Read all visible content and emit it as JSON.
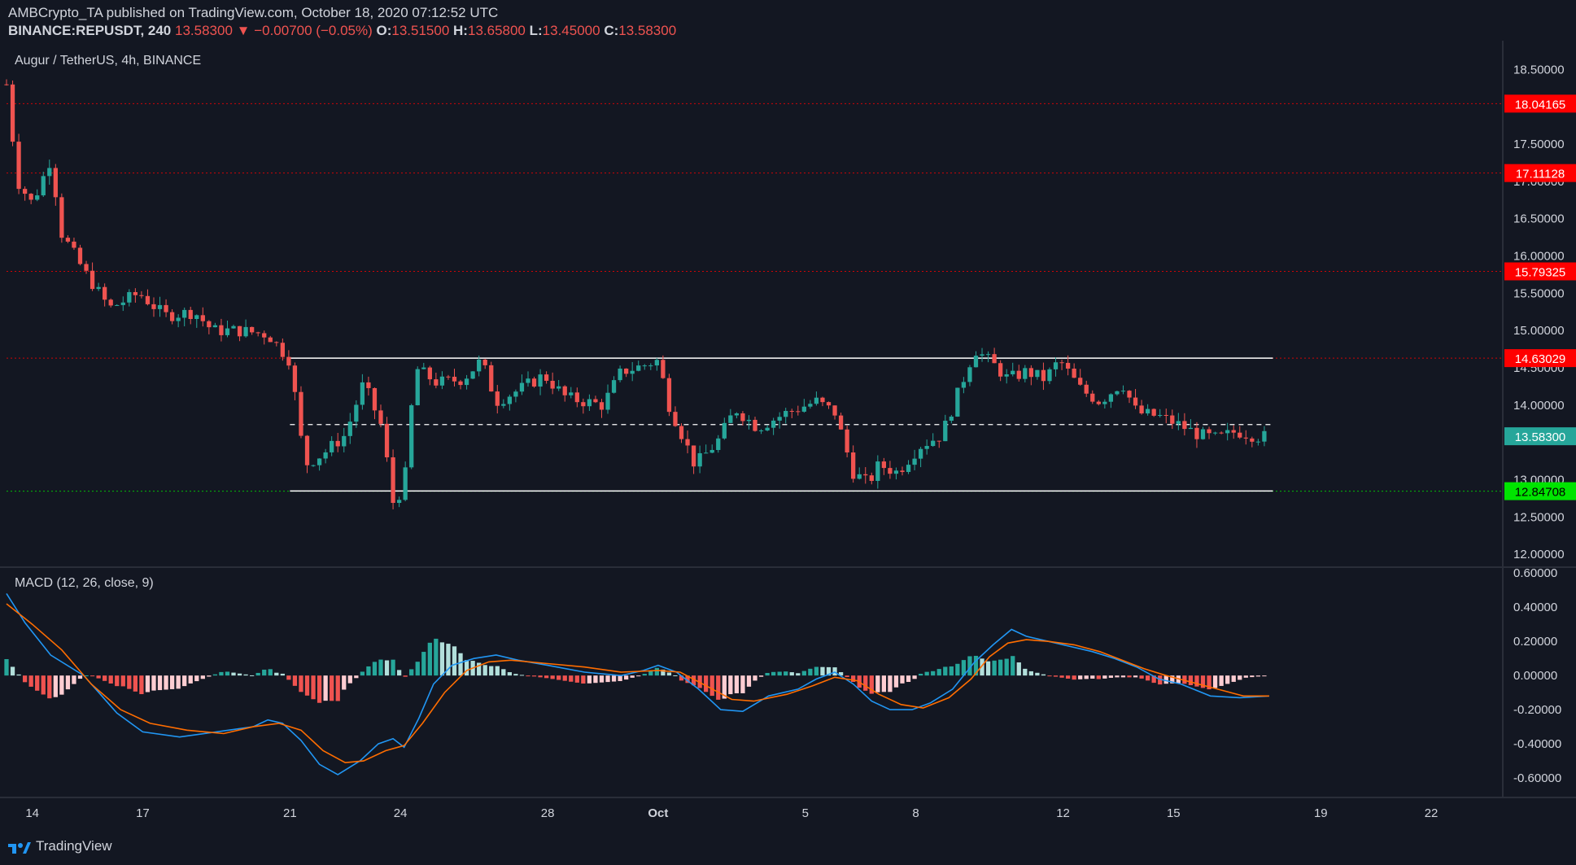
{
  "header": {
    "publisher_line": "AMBCrypto_TA published on TradingView.com, October 18, 2020 07:12:52 UTC",
    "symbol": "BINANCE:REPUSDT, 240",
    "last_price": "13.58300",
    "change_arrow": "▼",
    "change": "−0.00700 (−0.05%)",
    "o_label": "O:",
    "o_value": "13.51500",
    "h_label": "H:",
    "h_value": "13.65800",
    "l_label": "L:",
    "l_value": "13.45000",
    "c_label": "C:",
    "c_value": "13.58300"
  },
  "main_pane": {
    "title": "Augur / TetherUS, 4h, BINANCE"
  },
  "macd_pane": {
    "title": "MACD (12, 26, close, 9)"
  },
  "footer": {
    "brand": "TradingView",
    "brand_icon": "tradingview-logo-icon"
  },
  "colors": {
    "background": "#131722",
    "up": "#26a69a",
    "down": "#ef5350",
    "hist_up_strong": "#26a69a",
    "hist_up_weak": "#b2dfdb",
    "hist_down_strong": "#ef5350",
    "hist_down_weak": "#ffcdd2",
    "macd_line": "#2196f3",
    "signal_line": "#ff6d00",
    "resistance_line": "#ffffff",
    "support_line": "#ffffff",
    "level_red": "#ff0000",
    "level_green": "#00e400",
    "price_tag": "#26a69a"
  },
  "chart_data": [
    {
      "type": "candlestick",
      "title": "Augur / TetherUS, 4h, BINANCE",
      "x_ticks": [
        "14",
        "17",
        "21",
        "24",
        "28",
        "Oct",
        "5",
        "8",
        "12",
        "15",
        "19",
        "22"
      ],
      "x_tick_days": [
        14,
        17,
        21,
        24,
        28,
        31,
        35,
        38,
        42,
        45,
        49,
        52
      ],
      "x_range_days": [
        13.3,
        53.9
      ],
      "y_ticks": [
        "18.50000",
        "17.50000",
        "17.00000",
        "16.50000",
        "16.00000",
        "15.50000",
        "15.00000",
        "14.50000",
        "14.00000",
        "13.00000",
        "12.50000",
        "12.00000"
      ],
      "y_range": [
        11.85,
        18.82
      ],
      "price_labels": [
        {
          "text": "18.04165",
          "value": 18.04165,
          "kind": "resistance"
        },
        {
          "text": "17.11128",
          "value": 17.11128,
          "kind": "resistance"
        },
        {
          "text": "15.79325",
          "value": 15.79325,
          "kind": "resistance"
        },
        {
          "text": "14.63029",
          "value": 14.63029,
          "kind": "resistance"
        },
        {
          "text": "13.58300",
          "value": 13.583,
          "kind": "last"
        },
        {
          "text": "12.84708",
          "value": 12.84708,
          "kind": "support"
        }
      ],
      "channel": {
        "start_day": 21.0,
        "end_day": 47.7,
        "upper": 14.63,
        "mid": 13.74,
        "lower": 12.85
      },
      "last_day": 47.6,
      "anchors": [
        {
          "day": 13.3,
          "price": 18.3
        },
        {
          "day": 13.6,
          "price": 17.0
        },
        {
          "day": 14.0,
          "price": 16.7
        },
        {
          "day": 14.5,
          "price": 17.3
        },
        {
          "day": 14.8,
          "price": 16.3
        },
        {
          "day": 15.4,
          "price": 15.8
        },
        {
          "day": 16.1,
          "price": 15.3
        },
        {
          "day": 16.9,
          "price": 15.5
        },
        {
          "day": 17.6,
          "price": 15.2
        },
        {
          "day": 18.4,
          "price": 15.25
        },
        {
          "day": 18.9,
          "price": 15.0
        },
        {
          "day": 19.6,
          "price": 15.0
        },
        {
          "day": 20.4,
          "price": 14.95
        },
        {
          "day": 21.0,
          "price": 14.6
        },
        {
          "day": 21.4,
          "price": 13.2
        },
        {
          "day": 21.9,
          "price": 13.35
        },
        {
          "day": 22.5,
          "price": 13.6
        },
        {
          "day": 23.0,
          "price": 14.3
        },
        {
          "day": 23.5,
          "price": 13.7
        },
        {
          "day": 23.8,
          "price": 12.7
        },
        {
          "day": 24.1,
          "price": 12.9
        },
        {
          "day": 24.4,
          "price": 14.5
        },
        {
          "day": 25.0,
          "price": 14.3
        },
        {
          "day": 25.7,
          "price": 14.35
        },
        {
          "day": 26.2,
          "price": 14.6
        },
        {
          "day": 26.6,
          "price": 14.05
        },
        {
          "day": 27.2,
          "price": 14.2
        },
        {
          "day": 27.9,
          "price": 14.4
        },
        {
          "day": 28.5,
          "price": 14.1
        },
        {
          "day": 29.5,
          "price": 14.0
        },
        {
          "day": 30.0,
          "price": 14.45
        },
        {
          "day": 30.4,
          "price": 14.5
        },
        {
          "day": 31.0,
          "price": 14.6
        },
        {
          "day": 31.3,
          "price": 14.0
        },
        {
          "day": 32.0,
          "price": 13.2
        },
        {
          "day": 32.6,
          "price": 13.5
        },
        {
          "day": 33.1,
          "price": 13.95
        },
        {
          "day": 33.7,
          "price": 13.7
        },
        {
          "day": 34.5,
          "price": 13.9
        },
        {
          "day": 35.3,
          "price": 14.05
        },
        {
          "day": 35.8,
          "price": 13.9
        },
        {
          "day": 36.3,
          "price": 13.1
        },
        {
          "day": 36.7,
          "price": 12.95
        },
        {
          "day": 37.0,
          "price": 13.2
        },
        {
          "day": 37.5,
          "price": 13.1
        },
        {
          "day": 38.1,
          "price": 13.45
        },
        {
          "day": 38.7,
          "price": 13.6
        },
        {
          "day": 39.1,
          "price": 14.1
        },
        {
          "day": 39.6,
          "price": 14.75
        },
        {
          "day": 40.1,
          "price": 14.55
        },
        {
          "day": 40.5,
          "price": 14.35
        },
        {
          "day": 41.0,
          "price": 14.45
        },
        {
          "day": 41.5,
          "price": 14.35
        },
        {
          "day": 41.9,
          "price": 14.6
        },
        {
          "day": 42.5,
          "price": 14.2
        },
        {
          "day": 43.0,
          "price": 14.05
        },
        {
          "day": 43.6,
          "price": 14.3
        },
        {
          "day": 44.0,
          "price": 13.9
        },
        {
          "day": 44.6,
          "price": 13.85
        },
        {
          "day": 45.1,
          "price": 13.75
        },
        {
          "day": 45.7,
          "price": 13.6
        },
        {
          "day": 46.2,
          "price": 13.55
        },
        {
          "day": 46.7,
          "price": 13.65
        },
        {
          "day": 47.3,
          "price": 13.58
        },
        {
          "day": 47.6,
          "price": 13.58
        }
      ]
    },
    {
      "type": "line",
      "title": "MACD (12, 26, close, 9)",
      "y_ticks": [
        "0.60000",
        "0.40000",
        "0.20000",
        "0.00000",
        "-0.20000",
        "-0.40000",
        "-0.60000"
      ],
      "y_range": [
        -0.69,
        0.62
      ],
      "series": [
        {
          "name": "MACD",
          "color": "#2196f3",
          "points": [
            [
              13.3,
              0.48
            ],
            [
              13.8,
              0.31
            ],
            [
              14.5,
              0.12
            ],
            [
              15.4,
              0.0
            ],
            [
              16.3,
              -0.22
            ],
            [
              17.0,
              -0.33
            ],
            [
              18.0,
              -0.36
            ],
            [
              19.0,
              -0.33
            ],
            [
              20.0,
              -0.3
            ],
            [
              20.4,
              -0.26
            ],
            [
              20.8,
              -0.28
            ],
            [
              21.3,
              -0.38
            ],
            [
              21.8,
              -0.52
            ],
            [
              22.3,
              -0.58
            ],
            [
              22.9,
              -0.5
            ],
            [
              23.4,
              -0.4
            ],
            [
              23.8,
              -0.37
            ],
            [
              24.1,
              -0.42
            ],
            [
              24.5,
              -0.25
            ],
            [
              24.9,
              -0.05
            ],
            [
              25.4,
              0.06
            ],
            [
              26.0,
              0.1
            ],
            [
              26.6,
              0.12
            ],
            [
              27.2,
              0.09
            ],
            [
              28.0,
              0.06
            ],
            [
              29.0,
              0.02
            ],
            [
              30.0,
              0.0
            ],
            [
              30.6,
              0.03
            ],
            [
              31.0,
              0.06
            ],
            [
              31.5,
              0.02
            ],
            [
              32.1,
              -0.08
            ],
            [
              32.7,
              -0.2
            ],
            [
              33.3,
              -0.21
            ],
            [
              34.0,
              -0.12
            ],
            [
              34.8,
              -0.08
            ],
            [
              35.3,
              -0.02
            ],
            [
              35.8,
              0.02
            ],
            [
              36.3,
              -0.05
            ],
            [
              36.8,
              -0.15
            ],
            [
              37.3,
              -0.2
            ],
            [
              37.9,
              -0.2
            ],
            [
              38.4,
              -0.16
            ],
            [
              39.0,
              -0.08
            ],
            [
              39.6,
              0.08
            ],
            [
              40.1,
              0.18
            ],
            [
              40.6,
              0.27
            ],
            [
              41.0,
              0.23
            ],
            [
              41.6,
              0.2
            ],
            [
              42.2,
              0.17
            ],
            [
              42.8,
              0.14
            ],
            [
              43.4,
              0.1
            ],
            [
              44.0,
              0.05
            ],
            [
              44.6,
              -0.02
            ],
            [
              45.2,
              -0.05
            ],
            [
              46.0,
              -0.12
            ],
            [
              46.8,
              -0.13
            ],
            [
              47.6,
              -0.12
            ]
          ]
        },
        {
          "name": "Signal",
          "color": "#ff6d00",
          "points": [
            [
              13.3,
              0.42
            ],
            [
              14.0,
              0.3
            ],
            [
              14.8,
              0.15
            ],
            [
              15.6,
              -0.05
            ],
            [
              16.4,
              -0.2
            ],
            [
              17.2,
              -0.28
            ],
            [
              18.2,
              -0.32
            ],
            [
              19.2,
              -0.34
            ],
            [
              20.0,
              -0.3
            ],
            [
              20.7,
              -0.28
            ],
            [
              21.3,
              -0.32
            ],
            [
              21.9,
              -0.44
            ],
            [
              22.5,
              -0.51
            ],
            [
              23.0,
              -0.5
            ],
            [
              23.6,
              -0.44
            ],
            [
              24.1,
              -0.41
            ],
            [
              24.6,
              -0.28
            ],
            [
              25.2,
              -0.1
            ],
            [
              25.8,
              0.03
            ],
            [
              26.4,
              0.08
            ],
            [
              27.0,
              0.09
            ],
            [
              28.0,
              0.07
            ],
            [
              29.0,
              0.05
            ],
            [
              30.0,
              0.02
            ],
            [
              31.0,
              0.03
            ],
            [
              31.6,
              0.02
            ],
            [
              32.3,
              -0.06
            ],
            [
              33.0,
              -0.14
            ],
            [
              33.6,
              -0.15
            ],
            [
              34.5,
              -0.11
            ],
            [
              35.2,
              -0.06
            ],
            [
              35.8,
              -0.01
            ],
            [
              36.4,
              -0.03
            ],
            [
              37.0,
              -0.11
            ],
            [
              37.6,
              -0.17
            ],
            [
              38.2,
              -0.19
            ],
            [
              38.9,
              -0.13
            ],
            [
              39.5,
              -0.02
            ],
            [
              40.0,
              0.11
            ],
            [
              40.5,
              0.19
            ],
            [
              41.0,
              0.21
            ],
            [
              41.6,
              0.2
            ],
            [
              42.3,
              0.18
            ],
            [
              43.0,
              0.14
            ],
            [
              43.6,
              0.09
            ],
            [
              44.2,
              0.04
            ],
            [
              44.8,
              0.0
            ],
            [
              45.5,
              -0.04
            ],
            [
              46.2,
              -0.08
            ],
            [
              46.9,
              -0.12
            ],
            [
              47.6,
              -0.12
            ]
          ]
        }
      ]
    }
  ]
}
